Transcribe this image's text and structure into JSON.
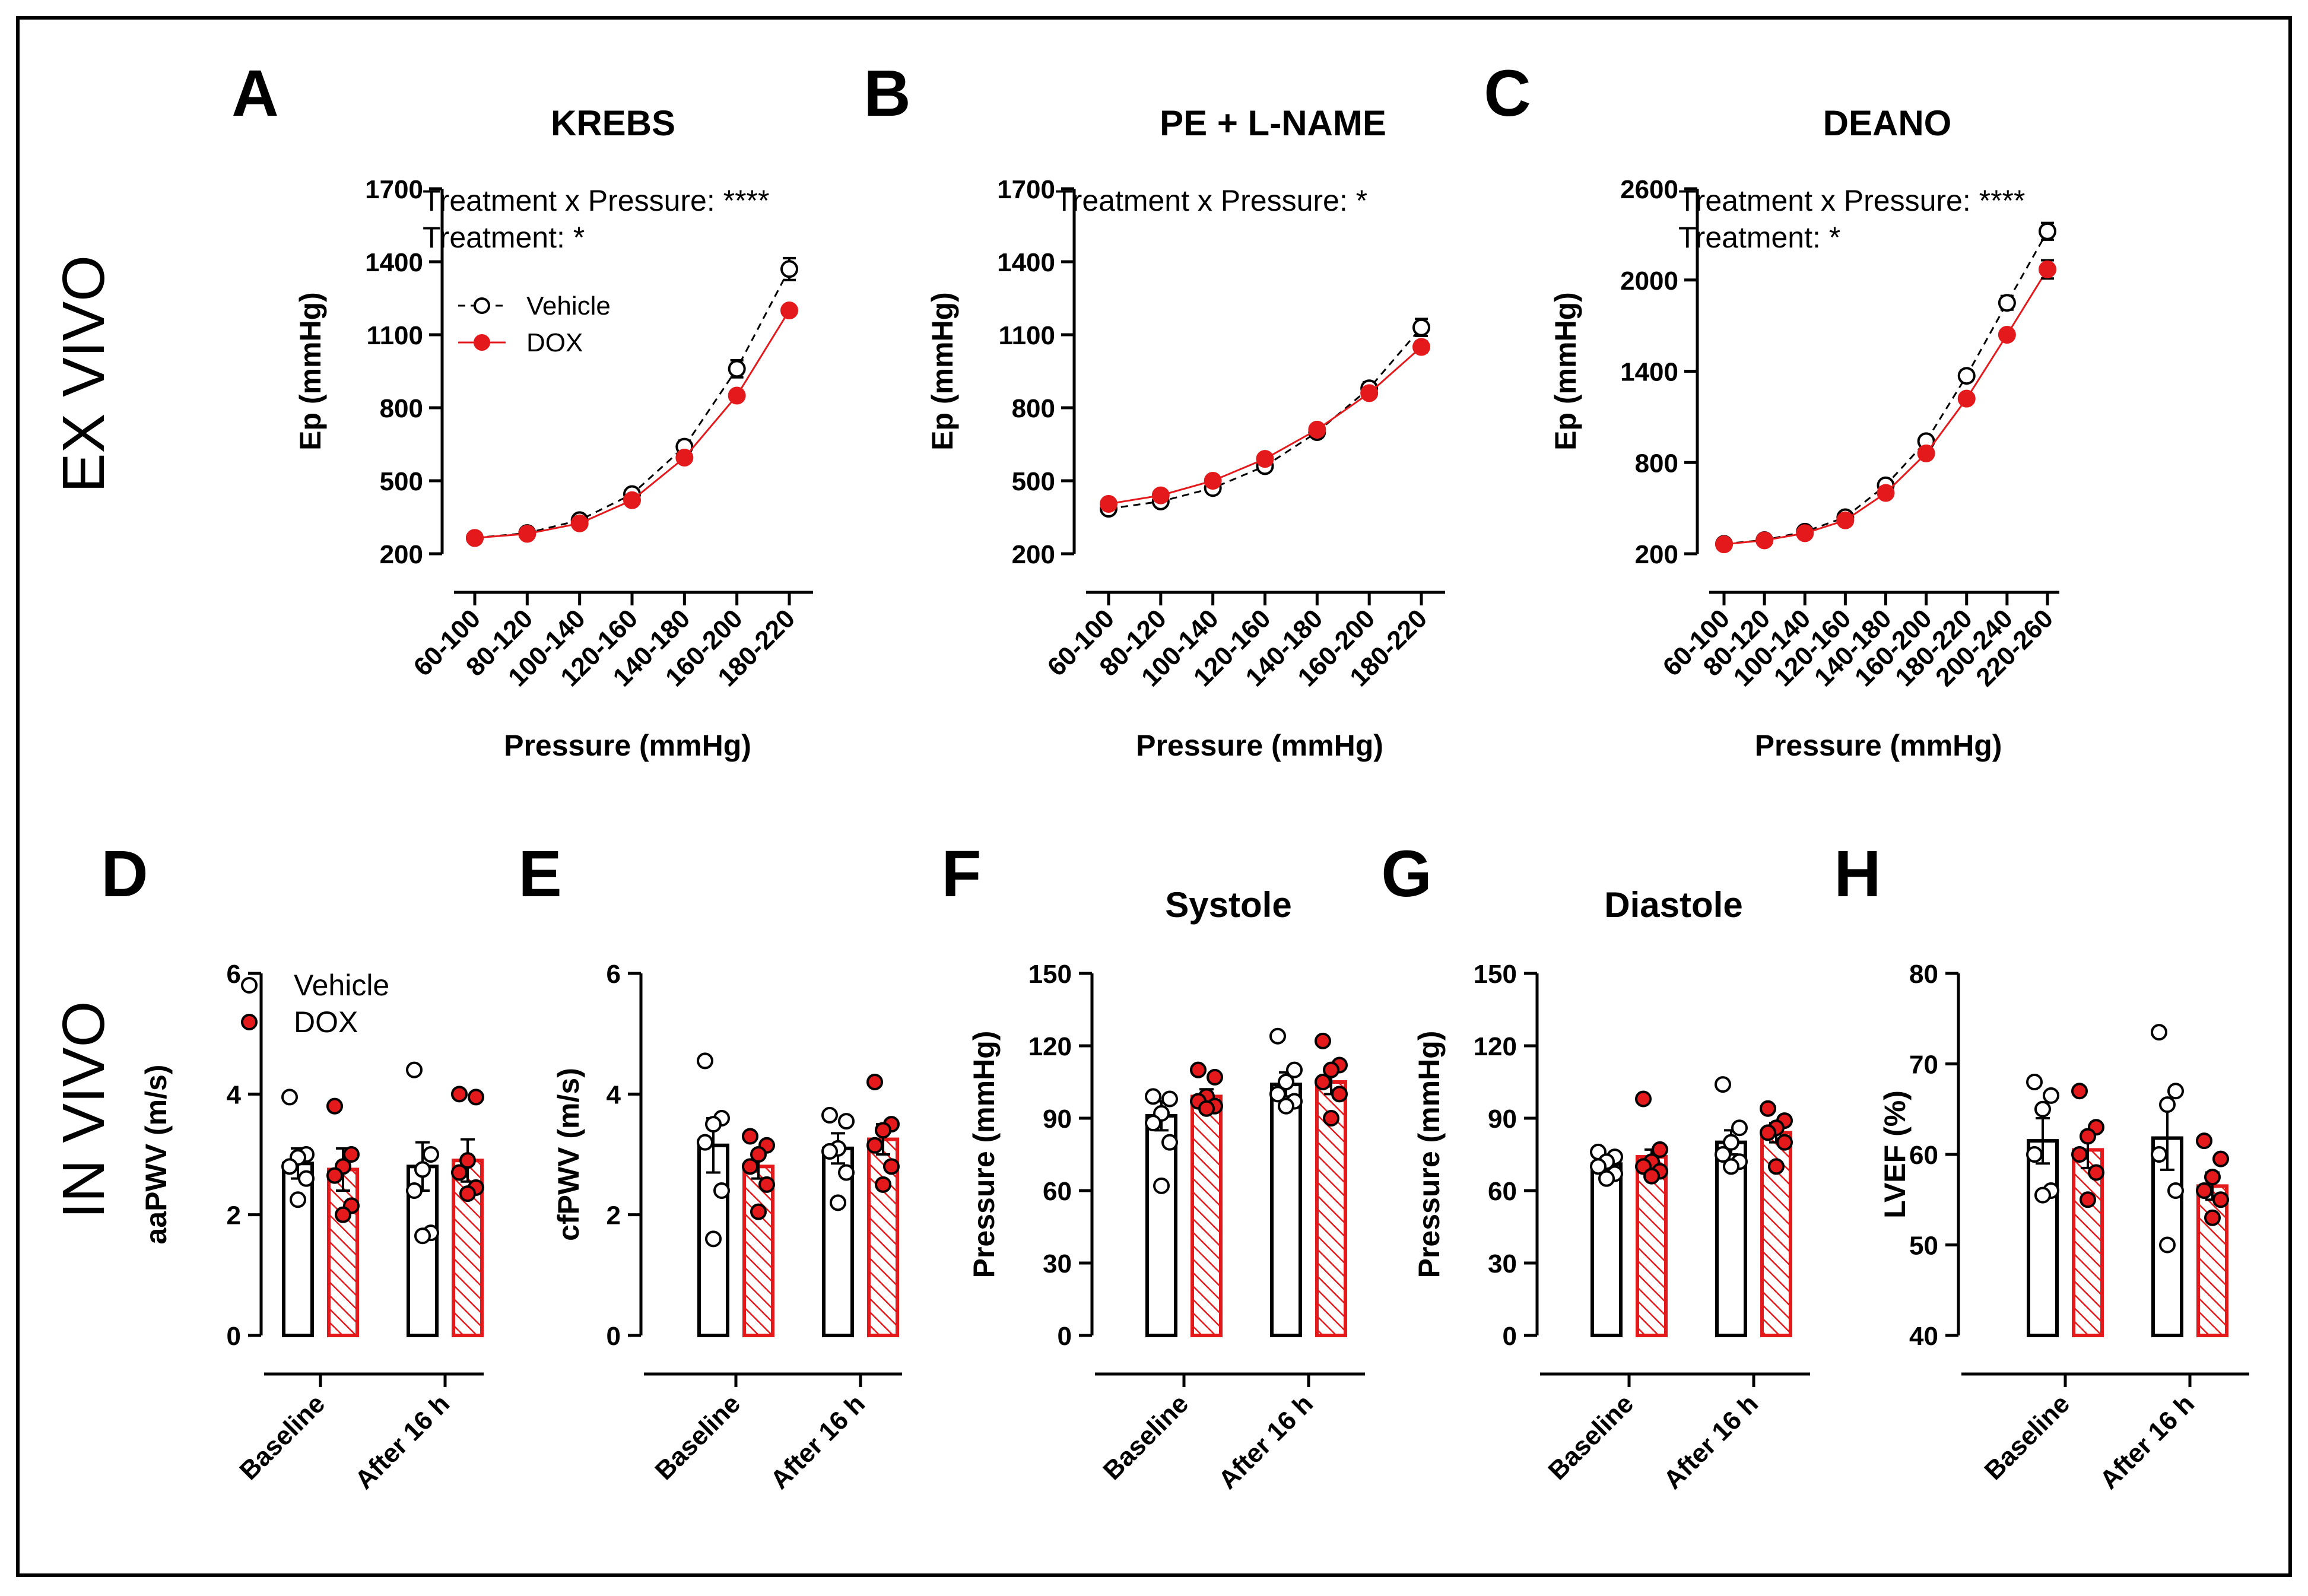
{
  "side_labels": [
    "EX VIVO",
    "IN VIVO"
  ],
  "colors": {
    "vehicle": "#ffffff",
    "dox": "#e3191c",
    "axis": "#000000"
  },
  "legend": {
    "vehicle": "Vehicle",
    "dox": "DOX"
  },
  "chart_data": [
    {
      "id": "A",
      "type": "line",
      "title": "KREBS",
      "xlabel": "Pressure (mmHg)",
      "ylabel": "Ep (mmHg)",
      "ylim": [
        200,
        1700
      ],
      "yticks": [
        200,
        500,
        800,
        1100,
        1400,
        1700
      ],
      "categories": [
        "60-100",
        "80-120",
        "100-140",
        "120-160",
        "140-180",
        "160-200",
        "180-220"
      ],
      "annotations": [
        "Treatment x Pressure: ****",
        "Treatment: *"
      ],
      "show_legend": true,
      "series": [
        {
          "name": "Vehicle",
          "values": [
            265,
            285,
            338,
            445,
            640,
            960,
            1370
          ],
          "errors": [
            8,
            10,
            12,
            15,
            25,
            35,
            45
          ]
        },
        {
          "name": "DOX",
          "values": [
            265,
            282,
            325,
            420,
            595,
            850,
            1200
          ],
          "errors": [
            6,
            8,
            10,
            12,
            15,
            18,
            20
          ]
        }
      ]
    },
    {
      "id": "B",
      "type": "line",
      "title": "PE + L-NAME",
      "xlabel": "Pressure (mmHg)",
      "ylabel": "Ep (mmHg)",
      "ylim": [
        200,
        1700
      ],
      "yticks": [
        200,
        500,
        800,
        1100,
        1400,
        1700
      ],
      "categories": [
        "60-100",
        "80-120",
        "100-140",
        "120-160",
        "140-180",
        "160-200",
        "180-220"
      ],
      "annotations": [
        "Treatment x Pressure: *"
      ],
      "show_legend": false,
      "series": [
        {
          "name": "Vehicle",
          "values": [
            385,
            415,
            470,
            560,
            700,
            880,
            1130
          ],
          "errors": [
            10,
            12,
            15,
            15,
            20,
            25,
            35
          ]
        },
        {
          "name": "DOX",
          "values": [
            405,
            440,
            500,
            590,
            710,
            860,
            1050
          ],
          "errors": [
            8,
            10,
            15,
            12,
            15,
            18,
            22
          ]
        }
      ]
    },
    {
      "id": "C",
      "type": "line",
      "title": "DEANO",
      "xlabel": "Pressure (mmHg)",
      "ylabel": "Ep (mmHg)",
      "ylim": [
        200,
        2600
      ],
      "yticks": [
        200,
        800,
        1400,
        2000,
        2600
      ],
      "categories": [
        "60-100",
        "80-120",
        "100-140",
        "120-160",
        "140-180",
        "160-200",
        "180-220",
        "200-240",
        "220-260"
      ],
      "annotations": [
        "Treatment x Pressure: ****",
        "Treatment: *"
      ],
      "show_legend": false,
      "series": [
        {
          "name": "Vehicle",
          "values": [
            265,
            290,
            345,
            440,
            650,
            940,
            1370,
            1850,
            2320
          ],
          "errors": [
            8,
            10,
            12,
            15,
            25,
            30,
            35,
            45,
            55
          ]
        },
        {
          "name": "DOX",
          "values": [
            262,
            288,
            335,
            420,
            600,
            860,
            1220,
            1640,
            2070
          ],
          "errors": [
            6,
            8,
            10,
            12,
            15,
            20,
            25,
            30,
            60
          ]
        }
      ]
    },
    {
      "id": "D",
      "type": "bar",
      "title": "",
      "ylabel": "aaPWV (m/s)",
      "ylim": [
        0,
        6
      ],
      "yticks": [
        0,
        2,
        4,
        6
      ],
      "categories": [
        "Baseline",
        "After 16 h"
      ],
      "show_legend": true,
      "series": [
        {
          "name": "Vehicle",
          "values": [
            2.85,
            2.8
          ],
          "errors": [
            0.25,
            0.4
          ],
          "points": [
            [
              3.95,
              3.0,
              2.95,
              2.8,
              2.6,
              2.25
            ],
            [
              4.4,
              3.0,
              2.75,
              2.4,
              1.7,
              1.65
            ]
          ]
        },
        {
          "name": "DOX",
          "values": [
            2.75,
            2.9
          ],
          "errors": [
            0.35,
            0.35
          ],
          "points": [
            [
              3.8,
              3.0,
              2.8,
              2.65,
              2.15,
              2.0
            ],
            [
              4.0,
              3.95,
              2.9,
              2.7,
              2.45,
              2.35
            ]
          ]
        }
      ]
    },
    {
      "id": "E",
      "type": "bar",
      "title": "",
      "ylabel": "cfPWV (m/s)",
      "ylim": [
        0,
        6
      ],
      "yticks": [
        0,
        2,
        4,
        6
      ],
      "categories": [
        "Baseline",
        "After 16 h"
      ],
      "show_legend": false,
      "series": [
        {
          "name": "Vehicle",
          "values": [
            3.15,
            3.1
          ],
          "errors": [
            0.45,
            0.25
          ],
          "points": [
            [
              4.55,
              3.6,
              3.5,
              3.2,
              2.4,
              1.6
            ],
            [
              3.65,
              3.55,
              3.1,
              3.05,
              2.7,
              2.2
            ]
          ]
        },
        {
          "name": "DOX",
          "values": [
            2.8,
            3.25
          ],
          "errors": [
            0.2,
            0.25
          ],
          "points": [
            [
              3.3,
              3.15,
              3.0,
              2.8,
              2.5,
              2.05
            ],
            [
              4.2,
              3.5,
              3.4,
              3.15,
              2.8,
              2.5
            ]
          ]
        }
      ]
    },
    {
      "id": "F",
      "type": "bar",
      "title": "Systole",
      "ylabel": "Pressure (mmHg)",
      "ylim": [
        0,
        150
      ],
      "yticks": [
        0,
        30,
        60,
        90,
        120,
        150
      ],
      "categories": [
        "Baseline",
        "After 16 h"
      ],
      "show_legend": false,
      "series": [
        {
          "name": "Vehicle",
          "values": [
            91,
            104
          ],
          "errors": [
            6,
            5
          ],
          "points": [
            [
              99,
              98,
              92,
              88,
              80,
              62
            ],
            [
              124,
              110,
              105,
              100,
              97,
              95
            ]
          ]
        },
        {
          "name": "DOX",
          "values": [
            99,
            105
          ],
          "errors": [
            3,
            5
          ],
          "points": [
            [
              110,
              107,
              99,
              97,
              95,
              94
            ],
            [
              122,
              112,
              110,
              105,
              100,
              90
            ]
          ]
        }
      ]
    },
    {
      "id": "G",
      "type": "bar",
      "title": "Diastole",
      "ylabel": "Pressure (mmHg)",
      "ylim": [
        0,
        150
      ],
      "yticks": [
        0,
        30,
        60,
        90,
        120,
        150
      ],
      "categories": [
        "Baseline",
        "After 16 h"
      ],
      "show_legend": false,
      "series": [
        {
          "name": "Vehicle",
          "values": [
            71,
            80
          ],
          "errors": [
            2.5,
            5
          ],
          "points": [
            [
              76,
              74,
              72,
              70,
              67,
              65
            ],
            [
              104,
              86,
              80,
              75,
              72,
              70
            ]
          ]
        },
        {
          "name": "DOX",
          "values": [
            74,
            84
          ],
          "errors": [
            3,
            4
          ],
          "points": [
            [
              98,
              77,
              72,
              70,
              68,
              66
            ],
            [
              94,
              89,
              86,
              84,
              80,
              70
            ]
          ]
        }
      ]
    },
    {
      "id": "H",
      "type": "bar",
      "title": "",
      "ylabel": "LVEF (%)",
      "ylim": [
        40,
        80
      ],
      "yticks": [
        40,
        50,
        60,
        70,
        80
      ],
      "categories": [
        "Baseline",
        "After 16 h"
      ],
      "show_legend": false,
      "series": [
        {
          "name": "Vehicle",
          "values": [
            61.5,
            61.8
          ],
          "errors": [
            2.5,
            3.5
          ],
          "points": [
            [
              68,
              66.5,
              65,
              60,
              56,
              55.5
            ],
            [
              73.5,
              67,
              65.5,
              60,
              56,
              50
            ]
          ]
        },
        {
          "name": "DOX",
          "values": [
            60.5,
            56.5
          ],
          "errors": [
            2,
            1.5
          ],
          "points": [
            [
              67,
              63,
              62,
              60,
              58,
              55
            ],
            [
              61.5,
              59.5,
              57.5,
              56,
              55,
              53
            ]
          ]
        }
      ]
    }
  ]
}
